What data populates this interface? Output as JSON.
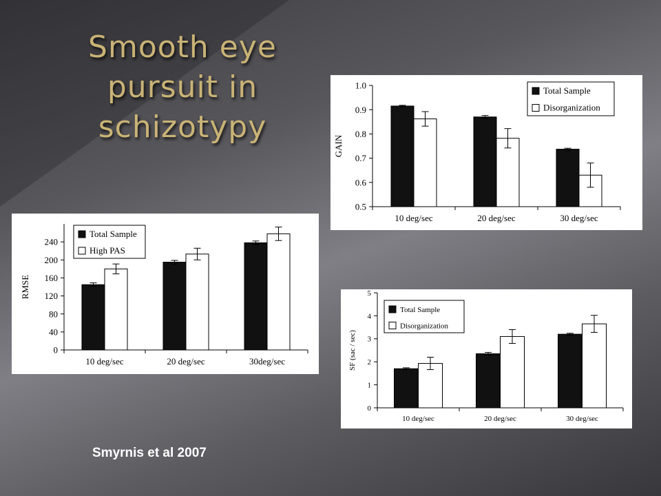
{
  "slide": {
    "title": "Smooth eye pursuit in schizotypy",
    "citation": "Smyrnis et al 2007"
  },
  "chart_data": [
    {
      "id": "gain",
      "type": "bar",
      "title": "",
      "xlabel": "",
      "ylabel": "GAIN",
      "categories": [
        "10 deg/sec",
        "20 deg/sec",
        "30 deg/sec"
      ],
      "ylim": [
        0.5,
        1.0
      ],
      "yticks": [
        0.5,
        0.6,
        0.7,
        0.8,
        0.9,
        1.0
      ],
      "ytick_labels": [
        "0.5",
        "0.6",
        "0.7",
        "0.8",
        "0.9",
        "1.0"
      ],
      "grid": false,
      "legend_position": "top-right",
      "series": [
        {
          "name": "Total Sample",
          "fill": "#111111",
          "values": [
            0.915,
            0.87,
            0.737
          ],
          "errors": [
            0.003,
            0.006,
            0.004
          ]
        },
        {
          "name": "Disorganization",
          "fill": "#ffffff",
          "values": [
            0.862,
            0.782,
            0.63
          ],
          "errors": [
            0.03,
            0.04,
            0.05
          ]
        }
      ]
    },
    {
      "id": "rmse",
      "type": "bar",
      "title": "",
      "xlabel": "",
      "ylabel": "RMSE",
      "categories": [
        "10 deg/sec",
        "20 deg/sec",
        "30deg/sec"
      ],
      "ylim": [
        0,
        280
      ],
      "yticks": [
        0,
        40,
        80,
        120,
        160,
        200,
        240
      ],
      "ytick_labels": [
        "0",
        "40",
        "80",
        "120",
        "160",
        "200",
        "240"
      ],
      "grid": false,
      "legend_position": "top-left",
      "series": [
        {
          "name": "Total Sample",
          "fill": "#111111",
          "values": [
            145,
            195,
            238
          ],
          "errors": [
            4,
            4,
            4
          ]
        },
        {
          "name": "High PAS",
          "fill": "#ffffff",
          "values": [
            180,
            213,
            258
          ],
          "errors": [
            11,
            13,
            15
          ]
        }
      ]
    },
    {
      "id": "sf",
      "type": "bar",
      "title": "",
      "xlabel": "",
      "ylabel": "SF (sac / sec)",
      "categories": [
        "10 deg/sec",
        "20 deg/sec",
        "30 deg/sec"
      ],
      "ylim": [
        0,
        5
      ],
      "yticks": [
        0,
        1,
        2,
        3,
        4,
        5
      ],
      "ytick_labels": [
        "0",
        "1",
        "2",
        "3",
        "4",
        "5"
      ],
      "grid": false,
      "legend_position": "top-left",
      "series": [
        {
          "name": "Total Sample",
          "fill": "#111111",
          "values": [
            1.7,
            2.35,
            3.2
          ],
          "errors": [
            0.04,
            0.06,
            0.04
          ]
        },
        {
          "name": "Disorganization",
          "fill": "#ffffff",
          "values": [
            1.93,
            3.1,
            3.65
          ],
          "errors": [
            0.27,
            0.3,
            0.37
          ]
        }
      ]
    }
  ]
}
